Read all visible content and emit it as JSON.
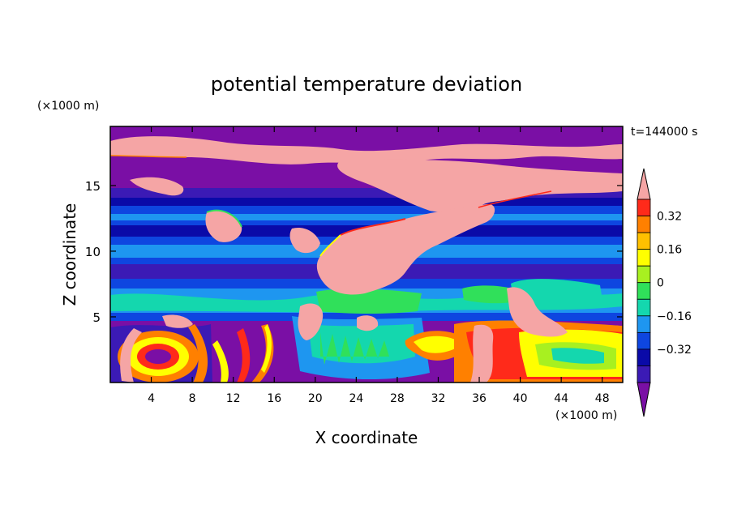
{
  "chart_data": {
    "type": "heatmap",
    "title": "potential temperature deviation",
    "xlabel": "X coordinate",
    "ylabel": "Z coordinate",
    "x_unit": "(×1000 m)",
    "y_unit": "(×1000 m)",
    "time_label": "t=144000 s",
    "xlim": [
      0,
      50
    ],
    "ylim": [
      0,
      19.5
    ],
    "x_ticks": [
      4,
      8,
      12,
      16,
      20,
      24,
      28,
      32,
      36,
      40,
      44,
      48
    ],
    "y_ticks": [
      5,
      10,
      15
    ],
    "colorbar": {
      "levels": [
        -0.48,
        -0.4,
        -0.32,
        -0.24,
        -0.16,
        -0.08,
        0,
        0.08,
        0.16,
        0.24,
        0.32,
        0.4
      ],
      "labeled_levels": [
        0.32,
        0.16,
        0,
        -0.16,
        -0.32
      ],
      "colors": [
        "#7a0fa5",
        "#3b1ab5",
        "#0a0aa8",
        "#0e46e0",
        "#1e96f0",
        "#14d7ae",
        "#30e05a",
        "#a8f020",
        "#ffff00",
        "#ffc000",
        "#ff8000",
        "#ff2a1a",
        "#f5a5a5"
      ],
      "extend": "both"
    }
  }
}
